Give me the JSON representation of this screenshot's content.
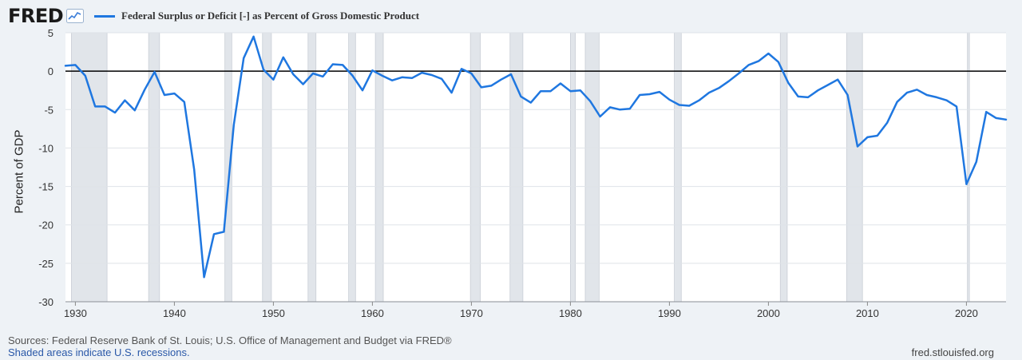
{
  "logo": {
    "text": "FRED"
  },
  "legend": {
    "label": "Federal Surplus or Deficit [-] as Percent of Gross Domestic Product",
    "color": "#1f77e0"
  },
  "footer": {
    "sources": "Sources: Federal Reserve Bank of St. Louis; U.S. Office of Management and Budget via FRED®",
    "recessions_note": "Shaded areas indicate U.S. recessions.",
    "url": "fred.stlouisfed.org"
  },
  "chart_data": {
    "type": "line",
    "title": "Federal Surplus or Deficit [-] as Percent of Gross Domestic Product",
    "xlabel": "",
    "ylabel": "Percent of GDP",
    "xlim": [
      1929,
      2024
    ],
    "ylim": [
      -30,
      5
    ],
    "yticks": [
      5,
      0,
      -5,
      -10,
      -15,
      -20,
      -25,
      -30
    ],
    "xticks": [
      1930,
      1940,
      1950,
      1960,
      1970,
      1980,
      1990,
      2000,
      2010,
      2020
    ],
    "zero_line": 0,
    "recessions": [
      [
        1929.6,
        1933.2
      ],
      [
        1937.4,
        1938.5
      ],
      [
        1945.1,
        1945.8
      ],
      [
        1948.9,
        1949.8
      ],
      [
        1953.5,
        1954.3
      ],
      [
        1957.6,
        1958.3
      ],
      [
        1960.3,
        1961.1
      ],
      [
        1969.9,
        1970.9
      ],
      [
        1973.9,
        1975.2
      ],
      [
        1980.0,
        1980.5
      ],
      [
        1981.5,
        1982.9
      ],
      [
        1990.5,
        1991.2
      ],
      [
        2001.2,
        2001.9
      ],
      [
        2007.9,
        2009.5
      ],
      [
        2020.1,
        2020.3
      ]
    ],
    "series": [
      {
        "name": "Federal Surplus or Deficit [-] as Percent of Gross Domestic Product",
        "color": "#1f77e0",
        "x": [
          1929,
          1930,
          1931,
          1932,
          1933,
          1934,
          1935,
          1936,
          1937,
          1938,
          1939,
          1940,
          1941,
          1942,
          1943,
          1944,
          1945,
          1946,
          1947,
          1948,
          1949,
          1950,
          1951,
          1952,
          1953,
          1954,
          1955,
          1956,
          1957,
          1958,
          1959,
          1960,
          1961,
          1962,
          1963,
          1964,
          1965,
          1966,
          1967,
          1968,
          1969,
          1970,
          1971,
          1972,
          1973,
          1974,
          1975,
          1976,
          1977,
          1978,
          1979,
          1980,
          1981,
          1982,
          1983,
          1984,
          1985,
          1986,
          1987,
          1988,
          1989,
          1990,
          1991,
          1992,
          1993,
          1994,
          1995,
          1996,
          1997,
          1998,
          1999,
          2000,
          2001,
          2002,
          2003,
          2004,
          2005,
          2006,
          2007,
          2008,
          2009,
          2010,
          2011,
          2012,
          2013,
          2014,
          2015,
          2016,
          2017,
          2018,
          2019,
          2020,
          2021,
          2022,
          2023,
          2024
        ],
        "values": [
          0.7,
          0.8,
          -0.6,
          -4.6,
          -4.6,
          -5.4,
          -3.8,
          -5.1,
          -2.4,
          -0.1,
          -3.1,
          -2.9,
          -4.0,
          -12.8,
          -26.8,
          -21.2,
          -20.9,
          -7.0,
          1.7,
          4.5,
          0.2,
          -1.1,
          1.8,
          -0.4,
          -1.7,
          -0.3,
          -0.7,
          0.9,
          0.8,
          -0.6,
          -2.5,
          0.1,
          -0.6,
          -1.2,
          -0.8,
          -0.9,
          -0.2,
          -0.5,
          -1.0,
          -2.8,
          0.3,
          -0.3,
          -2.1,
          -1.9,
          -1.1,
          -0.4,
          -3.3,
          -4.1,
          -2.6,
          -2.6,
          -1.6,
          -2.6,
          -2.5,
          -3.9,
          -5.9,
          -4.7,
          -5.0,
          -4.9,
          -3.1,
          -3.0,
          -2.7,
          -3.7,
          -4.4,
          -4.5,
          -3.8,
          -2.8,
          -2.2,
          -1.3,
          -0.3,
          0.8,
          1.3,
          2.3,
          1.2,
          -1.5,
          -3.3,
          -3.4,
          -2.5,
          -1.8,
          -1.1,
          -3.1,
          -9.8,
          -8.6,
          -8.4,
          -6.7,
          -4.0,
          -2.8,
          -2.4,
          -3.1,
          -3.4,
          -3.8,
          -4.6,
          -14.7,
          -11.8,
          -5.3,
          -6.1,
          -6.3
        ]
      }
    ]
  }
}
